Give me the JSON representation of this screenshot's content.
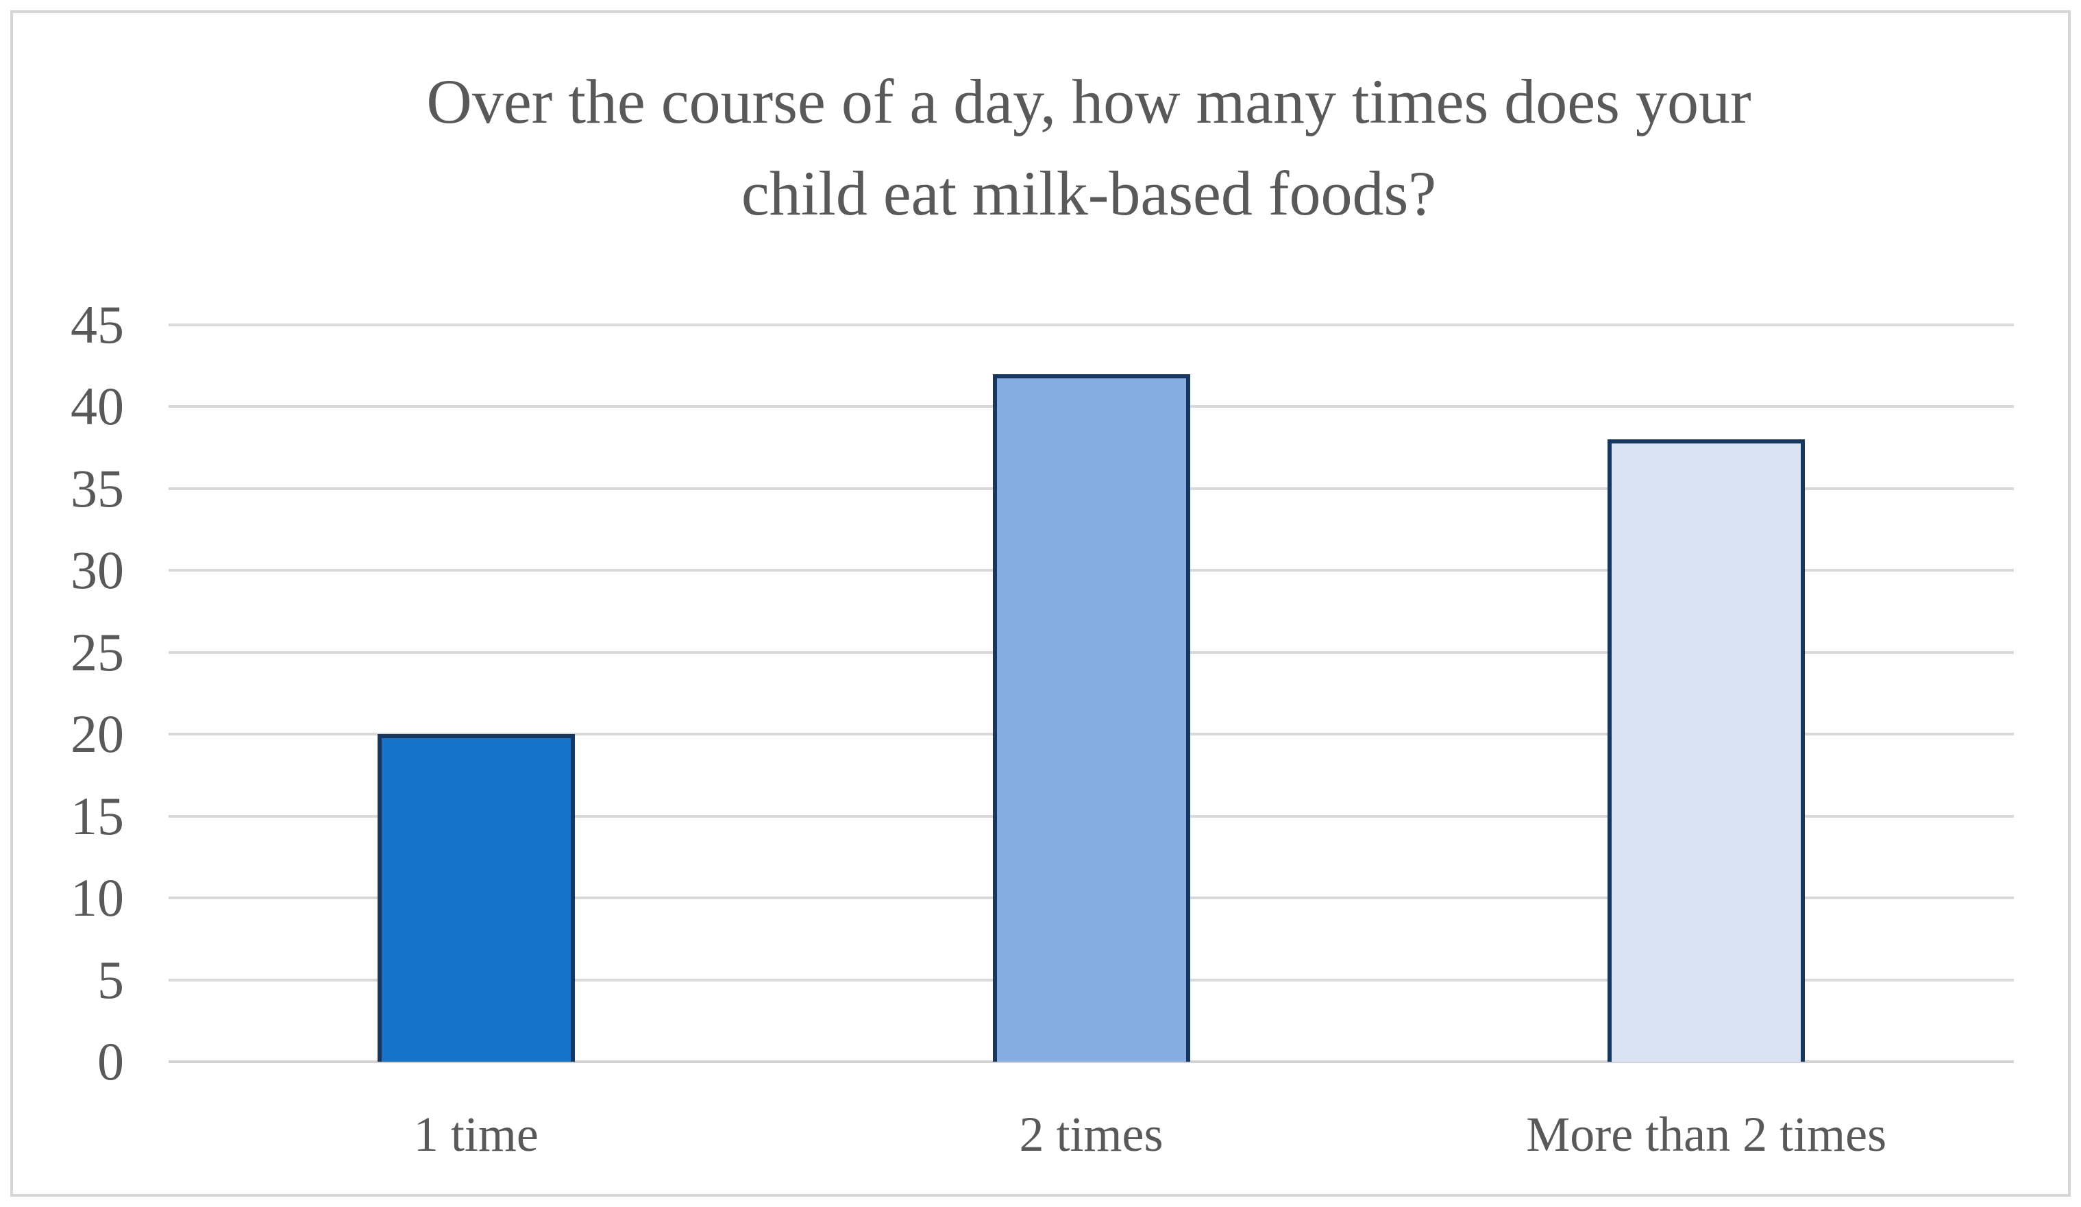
{
  "chart_data": {
    "type": "bar",
    "title": "Over the course of a day, how many times does your child eat milk-based foods?",
    "title_lines": [
      "Over the course of a day, how many times does your",
      "child eat milk-based foods?"
    ],
    "categories": [
      "1 time",
      "2 times",
      "More than 2 times"
    ],
    "values": [
      20,
      42,
      38
    ],
    "xlabel": "",
    "ylabel": "",
    "ylim": [
      0,
      45
    ],
    "ytick_step": 5,
    "yticks": [
      0,
      5,
      10,
      15,
      20,
      25,
      30,
      35,
      40,
      45
    ],
    "grid": true,
    "legend_position": "none",
    "colors": {
      "bar_fills": [
        "#1773C7",
        "#85ADE1",
        "#D9E3F4"
      ],
      "bar_border": "#17375E",
      "gridline": "#D9D9D9",
      "text": "#595959",
      "frame_border": "#D6D6D6",
      "background": "#FFFFFF"
    }
  }
}
